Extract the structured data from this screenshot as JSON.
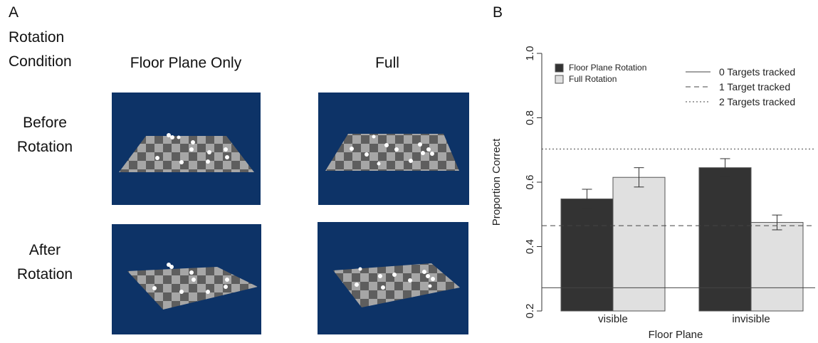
{
  "panel_a": {
    "letter": "A",
    "row_header": [
      "Rotation",
      "Condition"
    ],
    "columns": [
      "Floor Plane Only",
      "Full"
    ],
    "rows": [
      [
        "Before",
        "Rotation"
      ],
      [
        "After",
        "Rotation"
      ]
    ],
    "colors": {
      "scene_background": "#0d3367",
      "tile_light": "#a6a6a6",
      "tile_dark": "#5e5e5e",
      "ball": "#ffffff"
    }
  },
  "panel_b": {
    "letter": "B"
  },
  "chart_data": {
    "type": "bar",
    "xlabel": "Floor Plane",
    "ylabel": "Proportion Correct",
    "categories": [
      "visible",
      "invisible"
    ],
    "ylim": [
      0.2,
      1.0
    ],
    "yticks": [
      "0.2",
      "0.4",
      "0.6",
      "0.8",
      "1.0"
    ],
    "grid": false,
    "series": [
      {
        "name": "Floor Plane Rotation",
        "color": "#333333",
        "values": [
          0.548,
          0.645
        ],
        "errors": [
          0.03,
          0.028
        ]
      },
      {
        "name": "Full Rotation",
        "color": "#e0e0e0",
        "values": [
          0.615,
          0.475
        ],
        "errors": [
          0.03,
          0.023
        ]
      }
    ],
    "reference_lines": [
      {
        "name": "0 Targets tracked",
        "value": 0.272,
        "style": "solid"
      },
      {
        "name": "1 Target tracked",
        "value": 0.465,
        "style": "dashed"
      },
      {
        "name": "2 Targets tracked",
        "value": 0.703,
        "style": "dotted"
      }
    ],
    "legend_placement": "top"
  }
}
